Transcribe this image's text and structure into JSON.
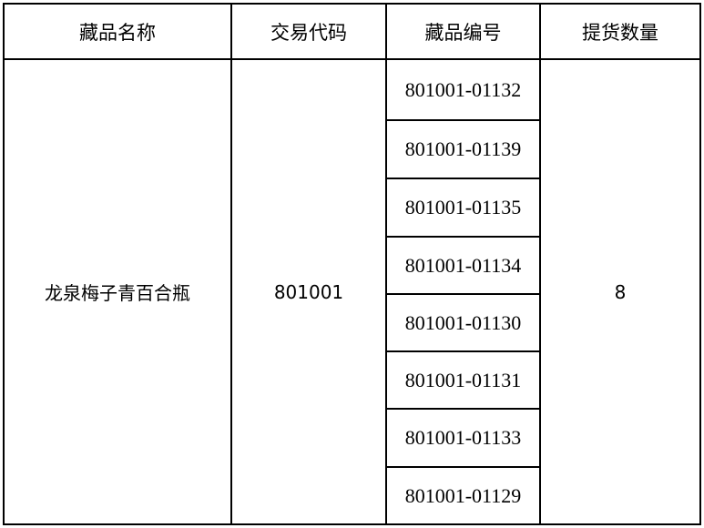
{
  "table": {
    "headers": [
      "藏品名称",
      "交易代码",
      "藏品编号",
      "提货数量"
    ],
    "item_name": "龙泉梅子青百合瓶",
    "trade_code": "801001",
    "serial_numbers": [
      "801001-01132",
      "801001-01139",
      "801001-01135",
      "801001-01134",
      "801001-01130",
      "801001-01131",
      "801001-01133",
      "801001-01129"
    ],
    "quantity": "8"
  }
}
